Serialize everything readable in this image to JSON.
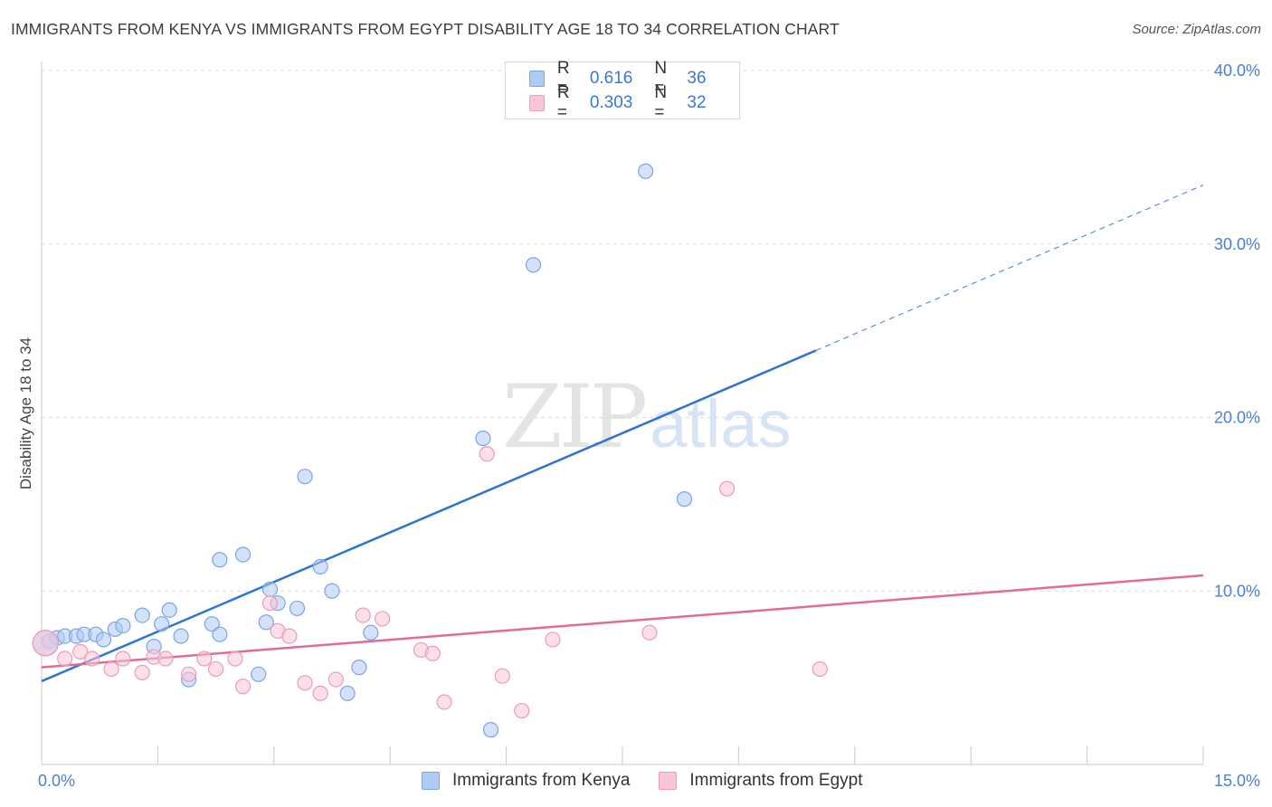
{
  "header": {
    "title": "IMMIGRANTS FROM KENYA VS IMMIGRANTS FROM EGYPT DISABILITY AGE 18 TO 34 CORRELATION CHART",
    "source": "Source: ZipAtlas.com"
  },
  "watermark": {
    "zip": "ZIP",
    "atlas": "atlas"
  },
  "legend": {
    "rows": [
      {
        "r_label": "R =",
        "r_value": "0.616",
        "n_label": "N =",
        "n_value": "36",
        "color": "#aecbf2",
        "border": "#7aa6e6"
      },
      {
        "r_label": "R =",
        "r_value": "0.303",
        "n_label": "N =",
        "n_value": "32",
        "color": "#f8c6d6",
        "border": "#ee9ab6"
      }
    ]
  },
  "bottom_legend": {
    "kenya": "Immigrants from Kenya",
    "egypt": "Immigrants from Egypt"
  },
  "chart_data": {
    "type": "scatter",
    "title": "IMMIGRANTS FROM KENYA VS IMMIGRANTS FROM EGYPT DISABILITY AGE 18 TO 34 CORRELATION CHART",
    "xlabel": "",
    "ylabel": "Disability Age 18 to 34",
    "xlim": [
      0,
      15
    ],
    "ylim": [
      0,
      40
    ],
    "x_tick_labels": [
      "0.0%",
      "15.0%"
    ],
    "y_ticks": [
      10,
      20,
      30,
      40
    ],
    "y_tick_labels": [
      "10.0%",
      "20.0%",
      "30.0%",
      "40.0%"
    ],
    "grid": true,
    "series": [
      {
        "name": "Immigrants from Kenya",
        "color": "#7aa6e6",
        "fill": "#aecbf2",
        "line_color": "#2f74d0",
        "R": 0.616,
        "N": 36,
        "trend": {
          "x0": 0,
          "y0": 4.8,
          "x1": 15,
          "y1": 33.4,
          "solid_until_x": 10.0
        },
        "points": [
          [
            0.1,
            7.1
          ],
          [
            0.2,
            7.3
          ],
          [
            0.3,
            7.4
          ],
          [
            0.45,
            7.4
          ],
          [
            0.55,
            7.5
          ],
          [
            0.7,
            7.5
          ],
          [
            0.8,
            7.2
          ],
          [
            0.95,
            7.8
          ],
          [
            1.05,
            8.0
          ],
          [
            1.3,
            8.6
          ],
          [
            1.45,
            6.8
          ],
          [
            1.55,
            8.1
          ],
          [
            1.65,
            8.9
          ],
          [
            1.8,
            7.4
          ],
          [
            1.9,
            4.9
          ],
          [
            2.2,
            8.1
          ],
          [
            2.3,
            7.5
          ],
          [
            2.3,
            11.8
          ],
          [
            2.6,
            12.1
          ],
          [
            2.8,
            5.2
          ],
          [
            2.9,
            8.2
          ],
          [
            2.95,
            10.1
          ],
          [
            3.05,
            9.3
          ],
          [
            3.3,
            9.0
          ],
          [
            3.4,
            16.6
          ],
          [
            3.6,
            11.4
          ],
          [
            3.75,
            10.0
          ],
          [
            3.95,
            4.1
          ],
          [
            4.1,
            5.6
          ],
          [
            4.25,
            7.6
          ],
          [
            5.7,
            18.8
          ],
          [
            5.8,
            2.0
          ],
          [
            6.35,
            28.8
          ],
          [
            7.8,
            34.2
          ],
          [
            8.3,
            15.3
          ],
          [
            0.05,
            7.0
          ]
        ]
      },
      {
        "name": "Immigrants from Egypt",
        "color": "#ee9ab6",
        "fill": "#f8c6d6",
        "line_color": "#e36a95",
        "R": 0.303,
        "N": 32,
        "trend": {
          "x0": 0,
          "y0": 5.6,
          "x1": 15,
          "y1": 10.9
        },
        "points": [
          [
            0.05,
            7.0
          ],
          [
            0.3,
            6.1
          ],
          [
            0.5,
            6.5
          ],
          [
            0.65,
            6.1
          ],
          [
            0.9,
            5.5
          ],
          [
            1.05,
            6.1
          ],
          [
            1.3,
            5.3
          ],
          [
            1.45,
            6.2
          ],
          [
            1.6,
            6.1
          ],
          [
            1.9,
            5.2
          ],
          [
            2.1,
            6.1
          ],
          [
            2.25,
            5.5
          ],
          [
            2.5,
            6.1
          ],
          [
            2.6,
            4.5
          ],
          [
            2.95,
            9.3
          ],
          [
            3.05,
            7.7
          ],
          [
            3.2,
            7.4
          ],
          [
            3.4,
            4.7
          ],
          [
            3.6,
            4.1
          ],
          [
            3.8,
            4.9
          ],
          [
            4.15,
            8.6
          ],
          [
            4.4,
            8.4
          ],
          [
            4.9,
            6.6
          ],
          [
            5.05,
            6.4
          ],
          [
            5.2,
            3.6
          ],
          [
            5.75,
            17.9
          ],
          [
            5.95,
            5.1
          ],
          [
            6.2,
            3.1
          ],
          [
            6.6,
            7.2
          ],
          [
            7.85,
            7.6
          ],
          [
            8.85,
            15.9
          ],
          [
            10.05,
            5.5
          ]
        ]
      }
    ]
  }
}
